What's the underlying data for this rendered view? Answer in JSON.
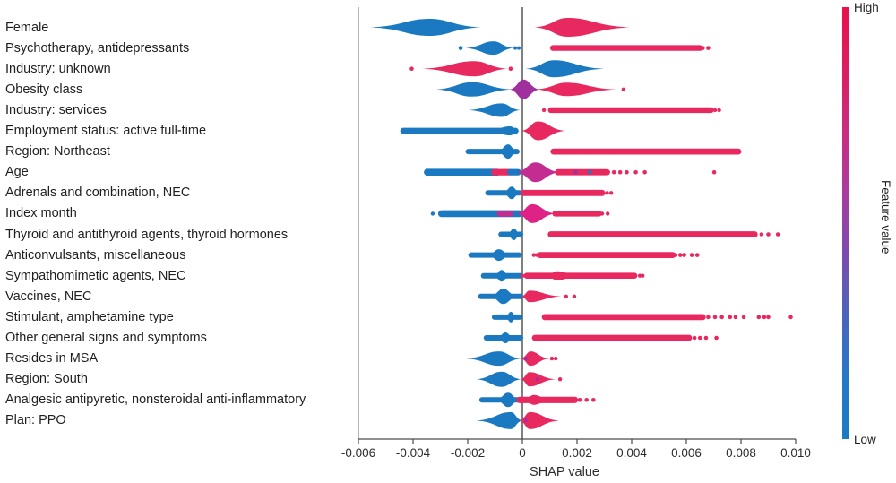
{
  "chart_data": {
    "type": "beeswarm",
    "title": "",
    "xlabel": "SHAP value",
    "xlim": [
      -0.006,
      0.01
    ],
    "grid": false,
    "x_ticks": [
      {
        "v": -0.006,
        "label": "-0.006"
      },
      {
        "v": -0.004,
        "label": "-0.004"
      },
      {
        "v": -0.002,
        "label": "-0.002"
      },
      {
        "v": 0,
        "label": "0"
      },
      {
        "v": 0.002,
        "label": "0.002"
      },
      {
        "v": 0.004,
        "label": "0.004"
      },
      {
        "v": 0.006,
        "label": "0.006"
      },
      {
        "v": 0.008,
        "label": "0.008"
      },
      {
        "v": 0.01,
        "label": "0.010"
      }
    ],
    "palette": {
      "blue": "#1B79C2",
      "red": "#E82960",
      "purple": "#A0309E",
      "magenta": "#C32D92",
      "pink": "#DF2386",
      "spine": "#8f8f8f",
      "zero_line": "#2b2b2b",
      "axis": "#4a4a4a",
      "text": "#2b2b2b"
    },
    "colorbar": {
      "label": "Feature value",
      "high_label": "High",
      "low_label": "Low",
      "gradient": [
        "#E8124C",
        "#DB1D61",
        "#C92D80",
        "#A93C9E",
        "#7C4BB0",
        "#4A64BC",
        "#2578C8",
        "#1B7AC4"
      ]
    },
    "features": [
      {
        "label": "Female",
        "shapes": [
          {
            "t": "v",
            "c": "blue",
            "x0": -0.00558,
            "xp": -0.0034,
            "x1": -0.00152,
            "h": 9.5
          },
          {
            "t": "v",
            "c": "red",
            "x0": 0.00045,
            "xp": 0.00165,
            "x1": 0.00394,
            "h": 10.5
          }
        ]
      },
      {
        "label": "Psychotherapy, antidepressants",
        "shapes": [
          {
            "t": "d",
            "c": "blue",
            "xs": [
              -0.00226
            ],
            "r": 2.3
          },
          {
            "t": "v",
            "c": "blue",
            "x0": -0.00208,
            "xp": -0.00106,
            "x1": -0.00032,
            "h": 7.5
          },
          {
            "t": "d",
            "c": "blue",
            "xs": [
              -0.00026,
              -0.00013
            ],
            "r": 2
          },
          {
            "t": "s",
            "c": "red",
            "x0": 0.00112,
            "x1": 0.0065,
            "h": 3.2
          },
          {
            "t": "d",
            "c": "red",
            "xs": [
              0.0066,
              0.0068
            ],
            "r": 2.3
          }
        ]
      },
      {
        "label": "Industry: unknown",
        "shapes": [
          {
            "t": "d",
            "c": "red",
            "xs": [
              -0.00405
            ],
            "r": 2.3
          },
          {
            "t": "v",
            "c": "red",
            "x0": -0.00368,
            "xp": -0.00176,
            "x1": -0.00054,
            "h": 8.5
          },
          {
            "t": "d",
            "c": "red",
            "xs": [
              -0.00043
            ],
            "r": 2.3
          },
          {
            "t": "v",
            "c": "blue",
            "x0": 0.00013,
            "xp": 0.00115,
            "x1": 0.00298,
            "h": 9.5
          }
        ]
      },
      {
        "label": "Obesity class",
        "shapes": [
          {
            "t": "v",
            "c": "blue",
            "x0": -0.00316,
            "xp": -0.00185,
            "x1": -0.00038,
            "h": 8
          },
          {
            "t": "v",
            "c": "purple",
            "x0": -0.00046,
            "xp": 4e-05,
            "x1": 0.00062,
            "h": 11
          },
          {
            "t": "v",
            "c": "red",
            "x0": 0.00048,
            "xp": 0.00162,
            "x1": 0.00345,
            "h": 7.5
          },
          {
            "t": "d",
            "c": "red",
            "xs": [
              0.0037
            ],
            "r": 2.2
          }
        ]
      },
      {
        "label": "Industry: services",
        "shapes": [
          {
            "t": "v",
            "c": "blue",
            "x0": -0.00198,
            "xp": -0.00076,
            "x1": -8e-05,
            "h": 7.5
          },
          {
            "t": "d",
            "c": "red",
            "xs": [
              0.00079
            ],
            "r": 2.2
          },
          {
            "t": "s",
            "c": "red",
            "x0": 0.00104,
            "x1": 0.0069,
            "h": 3.2
          },
          {
            "t": "d",
            "c": "red",
            "xs": [
              0.00705,
              0.0072
            ],
            "r": 2.2
          }
        ]
      },
      {
        "label": "Employment status: active full-time",
        "shapes": [
          {
            "t": "s",
            "c": "blue",
            "x0": -0.00436,
            "x1": -0.00025,
            "h": 3.4
          },
          {
            "t": "v",
            "c": "blue",
            "x0": -0.0013,
            "xp": -0.00045,
            "x1": -0.0001,
            "h": 5
          },
          {
            "t": "v",
            "c": "red",
            "x0": -3e-05,
            "xp": 0.00057,
            "x1": 0.00156,
            "h": 10.5
          }
        ]
      },
      {
        "label": "Region: Northeast",
        "shapes": [
          {
            "t": "s",
            "c": "blue",
            "x0": -0.00198,
            "x1": -0.0002,
            "h": 3
          },
          {
            "t": "v",
            "c": "blue",
            "x0": -0.00092,
            "xp": -0.00052,
            "x1": -0.00018,
            "h": 8
          },
          {
            "t": "s",
            "c": "red",
            "x0": 0.00114,
            "x1": 0.0079,
            "h": 3.4
          }
        ]
      },
      {
        "label": "Age",
        "shapes": [
          {
            "t": "s",
            "c": "blue",
            "x0": -0.00348,
            "x1": -0.00092,
            "h": 3.8
          },
          {
            "t": "s",
            "c": "red",
            "x0": -0.00102,
            "x1": -0.00046,
            "h": 3.6
          },
          {
            "t": "s",
            "c": "blue",
            "x0": -0.00044,
            "x1": -0.00016,
            "h": 3.6
          },
          {
            "t": "v",
            "c": "magenta",
            "x0": -0.00022,
            "xp": 0.00048,
            "x1": 0.00135,
            "h": 11
          },
          {
            "t": "s",
            "c": "red",
            "x0": 0.0013,
            "x1": 0.0031,
            "h": 3.4
          },
          {
            "t": "d",
            "c": "purple",
            "xs": [
              0.00195
            ],
            "r": 2.2
          },
          {
            "t": "d",
            "c": "blue",
            "xs": [
              0.00247
            ],
            "r": 2.2
          },
          {
            "t": "d",
            "c": "red",
            "xs": [
              0.00335,
              0.00358,
              0.00382,
              0.00415,
              0.00448,
              0.00702
            ],
            "r": 2.3
          }
        ]
      },
      {
        "label": "Adrenals and combination, NEC",
        "shapes": [
          {
            "t": "s",
            "c": "blue",
            "x0": -0.00126,
            "x1": -0.0001,
            "h": 3
          },
          {
            "t": "v",
            "c": "blue",
            "x0": -0.00072,
            "xp": -0.00039,
            "x1": -7e-05,
            "h": 7
          },
          {
            "t": "s",
            "c": "red",
            "x0": 4e-05,
            "x1": 0.00292,
            "h": 3.4
          },
          {
            "t": "d",
            "c": "red",
            "xs": [
              0.0031,
              0.00325
            ],
            "r": 2.2
          }
        ]
      },
      {
        "label": "Index month",
        "shapes": [
          {
            "t": "d",
            "c": "blue",
            "xs": [
              -0.00328
            ],
            "r": 2.2
          },
          {
            "t": "s",
            "c": "blue",
            "x0": -0.00296,
            "x1": -0.00012,
            "h": 3.8
          },
          {
            "t": "s",
            "c": "magenta",
            "x0": -0.00082,
            "x1": -0.00045,
            "h": 3.4
          },
          {
            "t": "v",
            "c": "pink",
            "x0": -0.0002,
            "xp": 0.00036,
            "x1": 0.00122,
            "h": 10.5
          },
          {
            "t": "s",
            "c": "red",
            "x0": 0.0012,
            "x1": 0.0028,
            "h": 3.2
          },
          {
            "t": "d",
            "c": "red",
            "xs": [
              0.00292,
              0.00312
            ],
            "r": 2.2
          }
        ]
      },
      {
        "label": "Thyroid and antithyroid agents, thyroid hormones",
        "shapes": [
          {
            "t": "s",
            "c": "blue",
            "x0": -0.00078,
            "x1": -6e-05,
            "h": 3
          },
          {
            "t": "v",
            "c": "blue",
            "x0": -0.00058,
            "xp": -0.00031,
            "x1": -6e-05,
            "h": 6.5
          },
          {
            "t": "s",
            "c": "red",
            "x0": 0.00104,
            "x1": 0.0085,
            "h": 3.4
          },
          {
            "t": "d",
            "c": "red",
            "xs": [
              0.00875,
              0.009,
              0.00935
            ],
            "r": 2.3
          }
        ]
      },
      {
        "label": "Anticonvulsants, miscellaneous",
        "shapes": [
          {
            "t": "s",
            "c": "blue",
            "x0": -0.00188,
            "x1": -0.00012,
            "h": 3
          },
          {
            "t": "v",
            "c": "blue",
            "x0": -0.00126,
            "xp": -0.00086,
            "x1": -0.00042,
            "h": 6.5
          },
          {
            "t": "d",
            "c": "red",
            "xs": [
              0.00042,
              0.00054
            ],
            "r": 2.2
          },
          {
            "t": "s",
            "c": "red",
            "x0": 0.00065,
            "x1": 0.0055,
            "h": 3.4
          },
          {
            "t": "d",
            "c": "red",
            "xs": [
              0.0056,
              0.00578,
              0.00592,
              0.0062,
              0.0064
            ],
            "r": 2.3
          }
        ]
      },
      {
        "label": "Sympathomimetic agents, NEC",
        "shapes": [
          {
            "t": "s",
            "c": "blue",
            "x0": -0.00142,
            "x1": -6e-05,
            "h": 3
          },
          {
            "t": "v",
            "c": "blue",
            "x0": -0.00106,
            "xp": -0.00076,
            "x1": -0.00046,
            "h": 6.5
          },
          {
            "t": "d",
            "c": "red",
            "xs": [
              2e-05
            ],
            "r": 2
          },
          {
            "t": "s",
            "c": "red",
            "x0": 0.00016,
            "x1": 0.0041,
            "h": 3.3
          },
          {
            "t": "v",
            "c": "red",
            "x0": 0.0008,
            "xp": 0.0013,
            "x1": 0.00205,
            "h": 5
          },
          {
            "t": "d",
            "c": "red",
            "xs": [
              0.0043,
              0.0044
            ],
            "r": 2.2
          }
        ]
      },
      {
        "label": "Vaccines, NEC",
        "shapes": [
          {
            "t": "s",
            "c": "blue",
            "x0": -0.00152,
            "x1": -6e-05,
            "h": 3
          },
          {
            "t": "v",
            "c": "blue",
            "x0": -0.00118,
            "xp": -0.0007,
            "x1": -0.00018,
            "h": 8.5
          },
          {
            "t": "v",
            "c": "red",
            "x0": -4e-05,
            "xp": 0.00026,
            "x1": 0.00142,
            "h": 6.5
          },
          {
            "t": "d",
            "c": "red",
            "xs": [
              0.0016,
              0.0019
            ],
            "r": 2.2
          }
        ]
      },
      {
        "label": "Stimulant, amphetamine type",
        "shapes": [
          {
            "t": "s",
            "c": "blue",
            "x0": -0.00102,
            "x1": -0.0001,
            "h": 3
          },
          {
            "t": "v",
            "c": "blue",
            "x0": -0.00064,
            "xp": -0.00042,
            "x1": -0.0002,
            "h": 6
          },
          {
            "t": "s",
            "c": "red",
            "x0": 0.00082,
            "x1": 0.0066,
            "h": 3.4
          },
          {
            "t": "d",
            "c": "red",
            "xs": [
              0.0068,
              0.00705,
              0.0073,
              0.0076,
              0.0078,
              0.0081,
              0.00865,
              0.00885,
              0.009,
              0.00982
            ],
            "r": 2.3
          }
        ]
      },
      {
        "label": "Other general signs and symptoms",
        "shapes": [
          {
            "t": "s",
            "c": "blue",
            "x0": -0.00132,
            "x1": -6e-05,
            "h": 3
          },
          {
            "t": "v",
            "c": "blue",
            "x0": -0.00094,
            "xp": -0.00062,
            "x1": -0.0003,
            "h": 6
          },
          {
            "t": "s",
            "c": "red",
            "x0": 0.00046,
            "x1": 0.0061,
            "h": 3.4
          },
          {
            "t": "d",
            "c": "red",
            "xs": [
              0.0063,
              0.0065,
              0.00672,
              0.0071
            ],
            "r": 2.3
          }
        ]
      },
      {
        "label": "Resides in MSA",
        "shapes": [
          {
            "t": "v",
            "c": "blue",
            "x0": -0.00206,
            "xp": -0.00086,
            "x1": -4e-05,
            "h": 8
          },
          {
            "t": "v",
            "c": "red",
            "x0": -6e-05,
            "xp": 0.0003,
            "x1": 0.00098,
            "h": 8
          },
          {
            "t": "d",
            "c": "purple",
            "xs": [
              0.00012
            ],
            "r": 2
          },
          {
            "t": "d",
            "c": "red",
            "xs": [
              0.00108,
              0.00122
            ],
            "r": 2.2
          }
        ]
      },
      {
        "label": "Region: South",
        "shapes": [
          {
            "t": "v",
            "c": "blue",
            "x0": -0.00168,
            "xp": -0.00076,
            "x1": -4e-05,
            "h": 8.5
          },
          {
            "t": "v",
            "c": "red",
            "x0": -6e-05,
            "xp": 0.00026,
            "x1": 0.00122,
            "h": 8
          },
          {
            "t": "d",
            "c": "purple",
            "xs": [
              0.00055
            ],
            "r": 2
          },
          {
            "t": "d",
            "c": "red",
            "xs": [
              0.00138
            ],
            "r": 2.2
          }
        ]
      },
      {
        "label": "Analgesic antipyretic, nonsteroidal anti-inflammatory",
        "shapes": [
          {
            "t": "s",
            "c": "blue",
            "x0": -0.00148,
            "x1": -6e-05,
            "h": 3
          },
          {
            "t": "v",
            "c": "blue",
            "x0": -0.00098,
            "xp": -0.00052,
            "x1": -0.0001,
            "h": 8
          },
          {
            "t": "s",
            "c": "red",
            "x0": -0.0001,
            "x1": 0.00192,
            "h": 3.6
          },
          {
            "t": "v",
            "c": "red",
            "x0": 2e-05,
            "xp": 0.00042,
            "x1": 0.00105,
            "h": 5.5
          },
          {
            "t": "d",
            "c": "red",
            "xs": [
              0.0021,
              0.00235,
              0.0026
            ],
            "r": 2.3
          }
        ]
      },
      {
        "label": "Plan: PPO",
        "shapes": [
          {
            "t": "v",
            "c": "blue",
            "x0": -0.00168,
            "xp": -0.00042,
            "x1": 0.0,
            "h": 9.5
          },
          {
            "t": "v",
            "c": "red",
            "x0": -0.00012,
            "xp": 0.00028,
            "x1": 0.00134,
            "h": 9.5
          },
          {
            "t": "d",
            "c": "purple",
            "xs": [
              0.00012
            ],
            "r": 2
          }
        ]
      }
    ]
  }
}
